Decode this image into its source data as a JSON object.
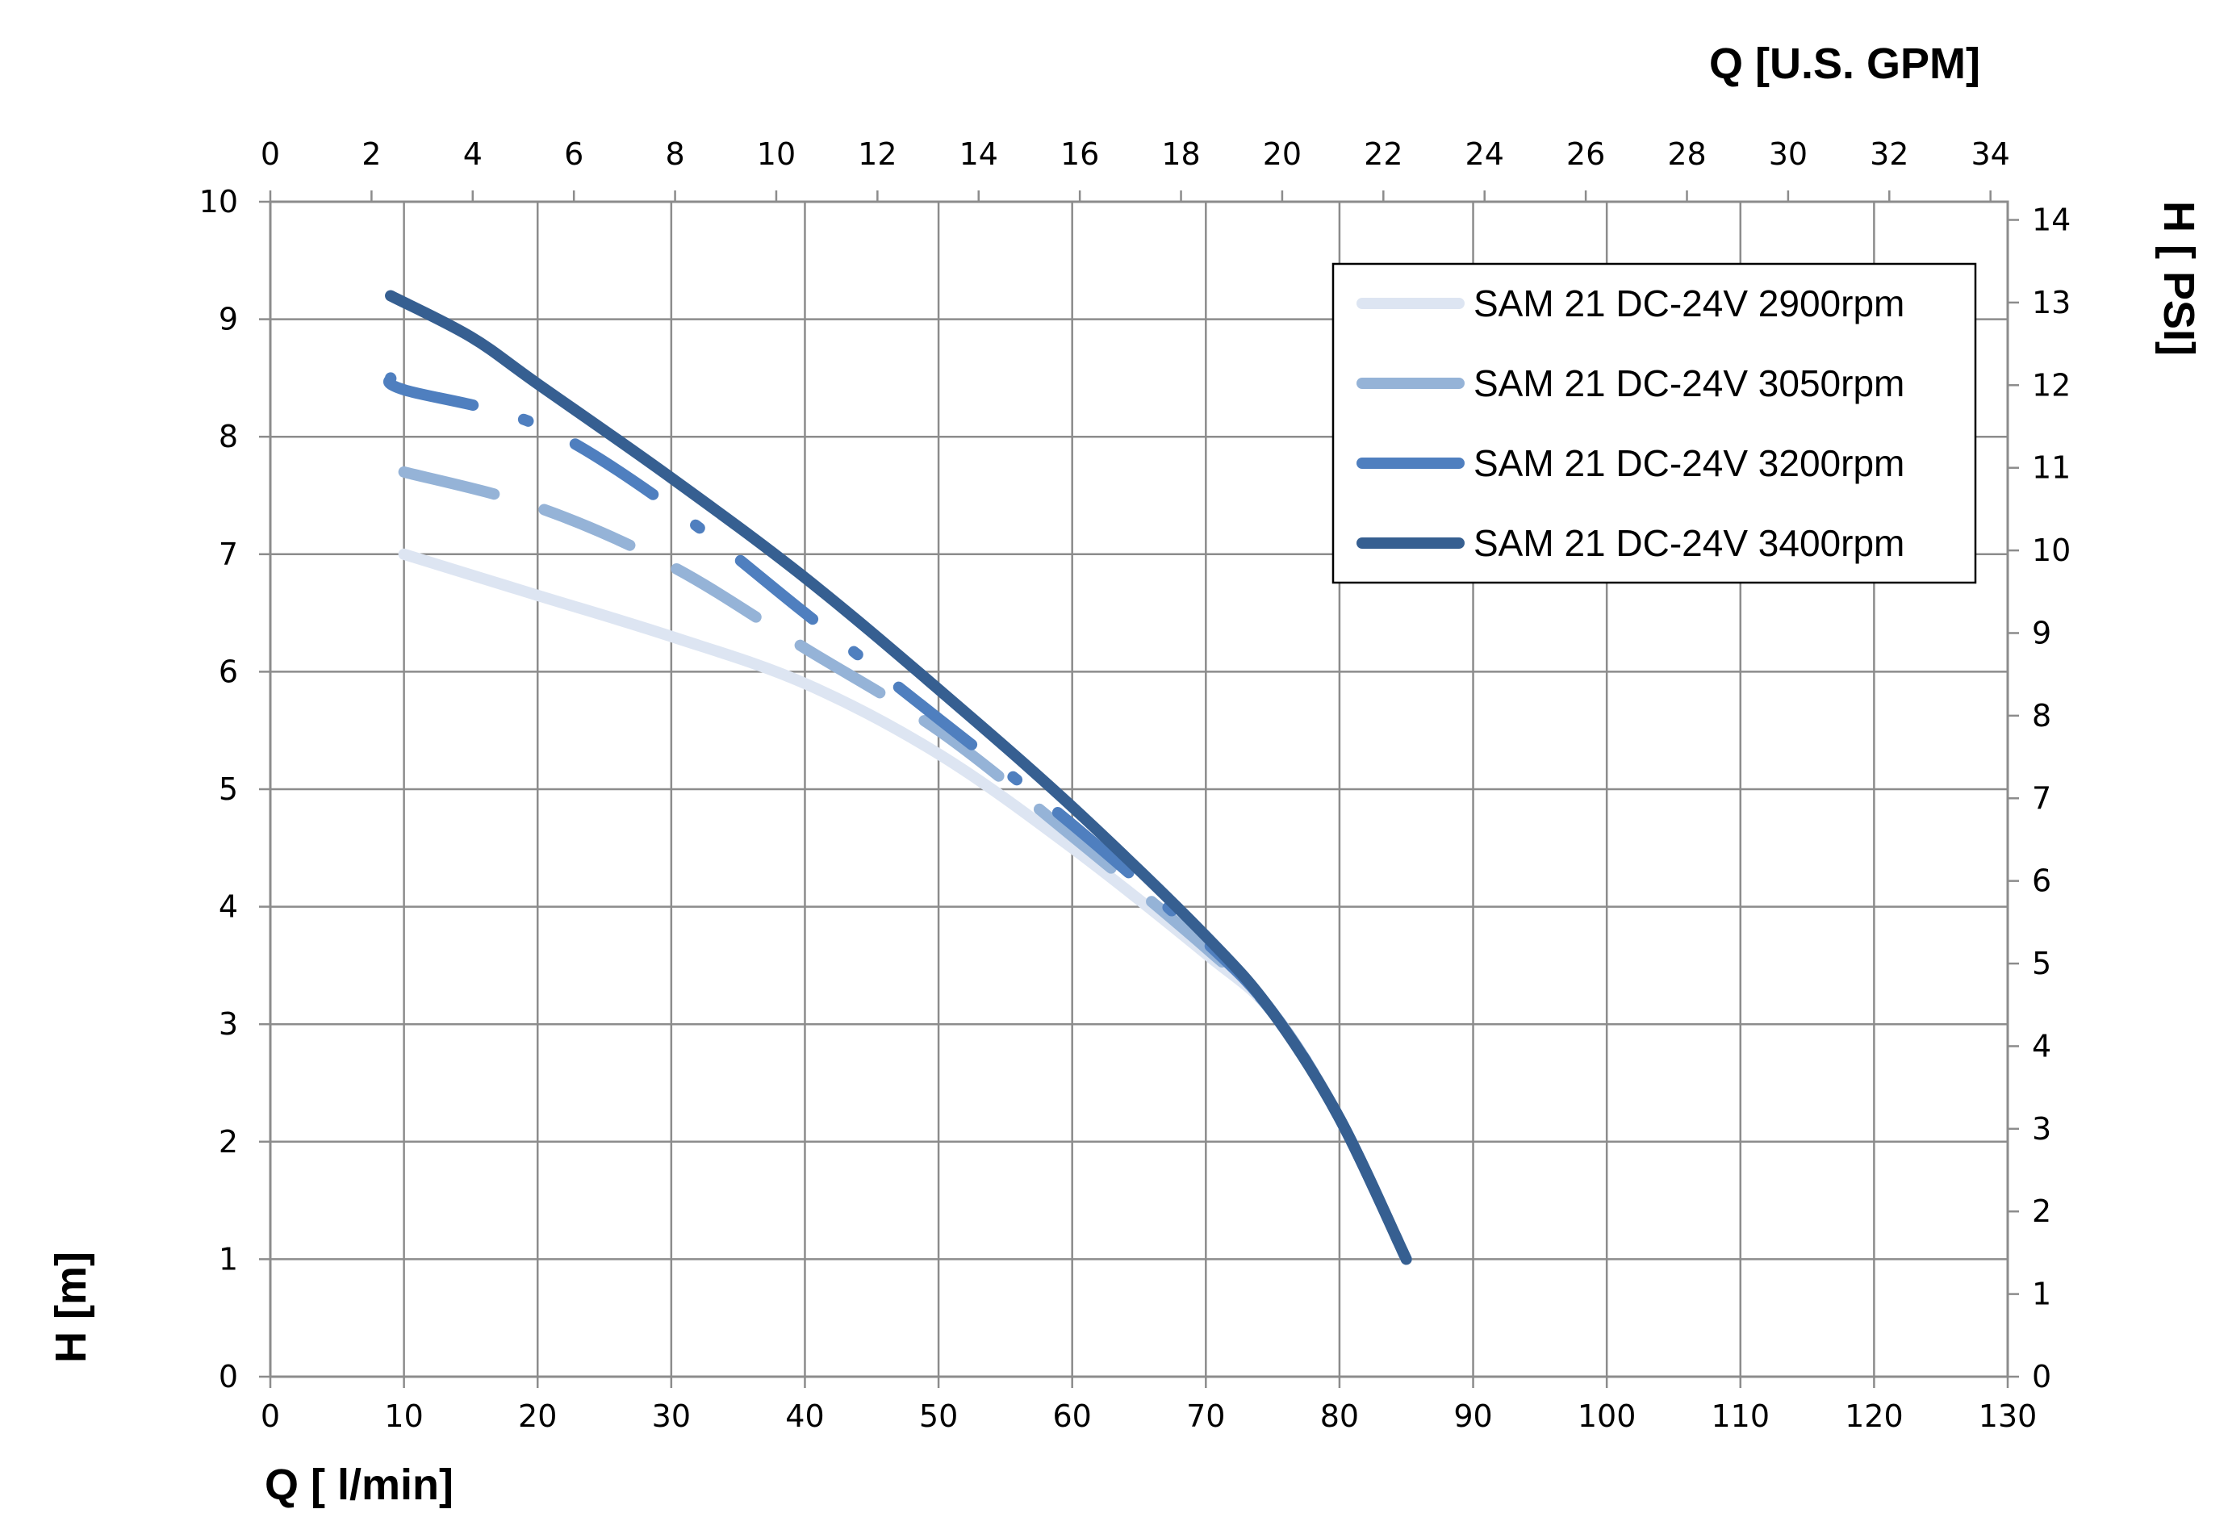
{
  "chart_data": {
    "type": "line",
    "x_axis": {
      "label": "Q [ l/min]",
      "range": [
        0,
        130
      ],
      "ticks": [
        0,
        10,
        20,
        30,
        40,
        50,
        60,
        70,
        80,
        90,
        100,
        110,
        120,
        130
      ]
    },
    "x2_axis": {
      "label": "Q  [U.S. GPM]",
      "range": [
        0,
        34.34
      ],
      "ticks": [
        0,
        2,
        4,
        6,
        8,
        10,
        12,
        14,
        16,
        18,
        20,
        22,
        24,
        26,
        28,
        30,
        32,
        34
      ]
    },
    "y_axis": {
      "label": "H [m]",
      "range": [
        0,
        10
      ],
      "ticks": [
        0,
        1,
        2,
        3,
        4,
        5,
        6,
        7,
        8,
        9,
        10
      ]
    },
    "y2_axis": {
      "label": "H [ PSI]",
      "range": [
        0,
        14.22
      ],
      "ticks": [
        0,
        1,
        2,
        3,
        4,
        5,
        6,
        7,
        8,
        9,
        10,
        11,
        12,
        13,
        14
      ]
    },
    "grid": true,
    "legend_position": "top-right",
    "series": [
      {
        "name": "SAM 21 DC-24V 2900rpm",
        "color": "#dde5f2",
        "dash": "solid",
        "x": [
          10,
          20,
          30,
          40,
          50,
          60,
          70,
          75,
          80,
          85
        ],
        "y": [
          7.0,
          6.65,
          6.3,
          5.9,
          5.3,
          4.5,
          3.6,
          3.1,
          2.2,
          1.0
        ]
      },
      {
        "name": "SAM 21 DC-24V 3050rpm",
        "color": "#95b3d7",
        "dash": "long-dash",
        "x": [
          10,
          20,
          30,
          40,
          50,
          60,
          70,
          75,
          80,
          85
        ],
        "y": [
          7.7,
          7.4,
          6.9,
          6.2,
          5.5,
          4.6,
          3.65,
          3.1,
          2.2,
          1.0
        ]
      },
      {
        "name": "SAM 21 DC-24V 3200rpm",
        "color": "#4f7fbf",
        "dash": "long-dash-dot",
        "x": [
          9,
          10,
          20,
          30,
          40,
          50,
          60,
          70,
          75,
          80,
          85
        ],
        "y": [
          8.5,
          8.4,
          8.1,
          7.4,
          6.5,
          5.6,
          4.7,
          3.7,
          3.1,
          2.2,
          1.0
        ]
      },
      {
        "name": "SAM 21 DC-24V 3400rpm",
        "color": "#365f91",
        "dash": "solid",
        "x": [
          9,
          15,
          20,
          30,
          40,
          50,
          60,
          70,
          75,
          80,
          85
        ],
        "y": [
          9.2,
          8.85,
          8.45,
          7.65,
          6.8,
          5.85,
          4.85,
          3.75,
          3.1,
          2.2,
          1.0
        ]
      }
    ]
  }
}
